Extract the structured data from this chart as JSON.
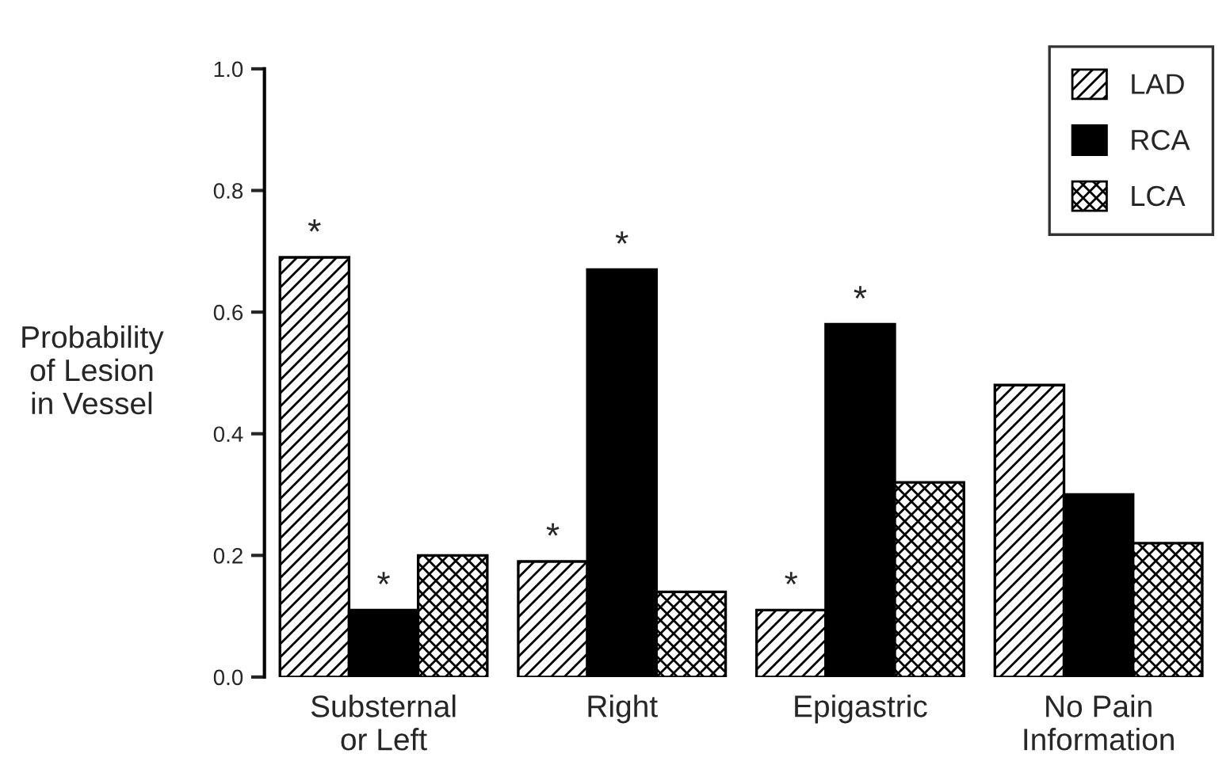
{
  "chart_data": {
    "type": "bar",
    "ylabel": "Probability\nof Lesion\nin Vessel",
    "categories": [
      "Substernal\nor Left",
      "Right",
      "Epigastric",
      "No Pain\nInformation"
    ],
    "series": [
      {
        "name": "LAD",
        "color": "#000000",
        "values": [
          0.69,
          0.19,
          0.11,
          0.48
        ],
        "value_labels": [
          "*",
          "*",
          "*",
          null
        ]
      },
      {
        "name": "RCA",
        "color": "#000000",
        "values": [
          0.11,
          0.67,
          0.58,
          0.3
        ],
        "value_labels": [
          "*",
          "*",
          "*",
          null
        ]
      },
      {
        "name": "LCA",
        "color": "#000000",
        "values": [
          0.2,
          0.14,
          0.32,
          0.22
        ]
      }
    ],
    "ylim": [
      0,
      1
    ],
    "yticks": [
      {
        "value": 0,
        "label": "0.0"
      },
      0.2,
      0.4,
      0.6,
      0.8,
      {
        "value": 1,
        "label": "1.0"
      }
    ],
    "grid": false,
    "legend": "top right"
  }
}
